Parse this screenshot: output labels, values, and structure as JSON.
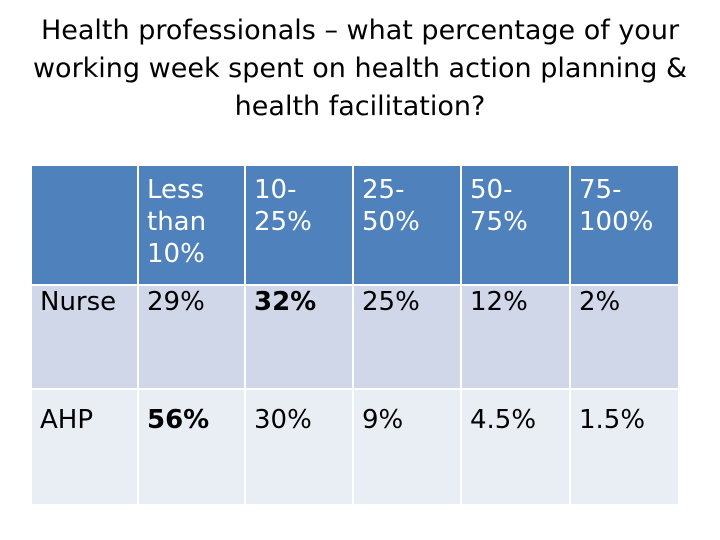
{
  "title": "Health professionals – what percentage of your working week spent on health action planning & health facilitation?",
  "table": {
    "headers": [
      "Less\nthan\n10%",
      "10-\n25%",
      "25-\n50%",
      "50-\n75%",
      "75-\n100%"
    ],
    "rows": [
      {
        "label": "Nurse",
        "values": [
          "29%",
          "32%",
          "25%",
          "12%",
          "2%"
        ],
        "bold_index": 1
      },
      {
        "label": "AHP",
        "values": [
          "56%",
          "30%",
          "9%",
          "4.5%",
          "1.5%"
        ],
        "bold_index": 0
      }
    ]
  },
  "colors": {
    "header": "#4f81bd",
    "row1": "#cfd7e8",
    "row2": "#e9edf4"
  }
}
